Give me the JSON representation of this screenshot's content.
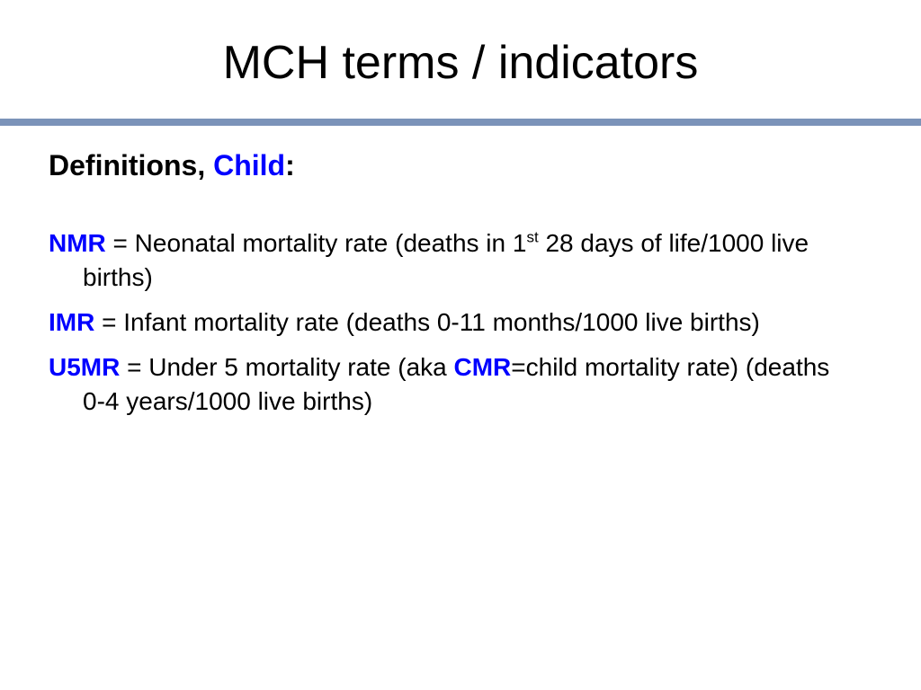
{
  "colors": {
    "accent": "#0000ff",
    "rule": "#7b93b9",
    "text": "#000000"
  },
  "slide": {
    "title": "MCH terms / indicators",
    "heading": {
      "prefix": "Definitions,",
      "keyword": "Child",
      "suffix": ":"
    },
    "definitions": [
      {
        "abbr": "NMR",
        "text_before_sup": " = Neonatal mortality rate (deaths in 1",
        "sup": "st",
        "text_after_sup": " 28 days of life/1000 live births)"
      },
      {
        "abbr": "IMR",
        "text": " = Infant mortality rate (deaths 0-11 months/1000 live births)"
      },
      {
        "abbr": "U5MR",
        "text_before": " = Under 5 mortality rate (aka ",
        "abbr2": "CMR",
        "text_after": "=child mortality rate) (deaths 0-4 years/1000 live births)"
      }
    ]
  }
}
